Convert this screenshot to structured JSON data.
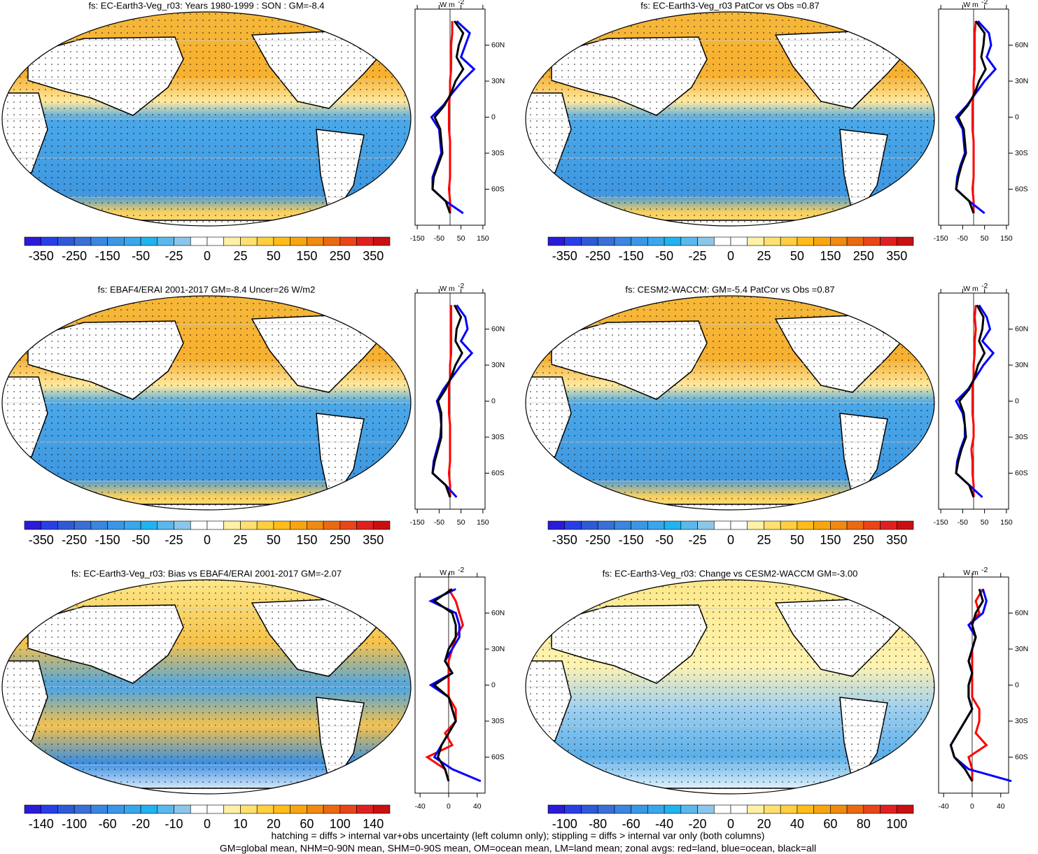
{
  "chart_data": [
    {
      "type": "map",
      "title": "fs: EC-Earth3-Veg_r03: Years 1980-1999 : SON : GM=-8.4",
      "colorbar_colors": [
        "#2a1bd8",
        "#2a3ee6",
        "#2e5ad6",
        "#3a6fd8",
        "#3a86e0",
        "#3a97e6",
        "#3aa6ec",
        "#1fb3ef",
        "#5ab8ec",
        "#8cc6ea",
        "#ffffff",
        "#ffffff",
        "#fff0a8",
        "#ffe070",
        "#ffcf40",
        "#ffbc1a",
        "#f7a510",
        "#f08a10",
        "#eb6a10",
        "#e84518",
        "#e02020",
        "#c81010"
      ],
      "colorbar_ticks": [
        -350,
        -250,
        -150,
        -50,
        -25,
        0,
        25,
        50,
        150,
        250,
        350
      ],
      "zonal": {
        "type": "line",
        "units": "W m",
        "units_sup": "-2",
        "lat": [
          80,
          70,
          60,
          50,
          40,
          30,
          20,
          10,
          0,
          -10,
          -20,
          -30,
          -40,
          -50,
          -60,
          -70,
          -80
        ],
        "xlim": [
          -160,
          160
        ],
        "xticks": [
          -150,
          -50,
          50,
          150
        ],
        "ylim": [
          -90,
          90
        ],
        "yticks": [
          {
            "value": 60,
            "label": "60N"
          },
          {
            "value": 30,
            "label": "30N"
          },
          {
            "value": 0,
            "label": "0"
          },
          {
            "value": -30,
            "label": "30S"
          },
          {
            "value": -60,
            "label": "60S"
          }
        ],
        "series": [
          {
            "color": "#ff0000",
            "values": [
              10,
              10,
              5,
              5,
              5,
              0,
              0,
              -5,
              -5,
              -5,
              0,
              0,
              0,
              0,
              -5,
              0,
              0
            ]
          },
          {
            "color": "#0000ff",
            "values": [
              30,
              90,
              70,
              50,
              110,
              55,
              10,
              -30,
              -85,
              -50,
              -45,
              -40,
              -60,
              -80,
              -80,
              -20,
              60
            ]
          },
          {
            "color": "#000000",
            "values": [
              20,
              60,
              40,
              30,
              60,
              25,
              5,
              -25,
              -70,
              -45,
              -40,
              -35,
              -55,
              -75,
              -80,
              -20,
              0
            ]
          }
        ]
      }
    },
    {
      "type": "map",
      "title": "fs: EC-Earth3-Veg_r03 PatCor vs Obs =0.87",
      "colorbar_colors": [
        "#2a1bd8",
        "#2a3ee6",
        "#2e5ad6",
        "#3a6fd8",
        "#3a86e0",
        "#3a97e6",
        "#3aa6ec",
        "#1fb3ef",
        "#5ab8ec",
        "#8cc6ea",
        "#ffffff",
        "#ffffff",
        "#fff0a8",
        "#ffe070",
        "#ffcf40",
        "#ffbc1a",
        "#f7a510",
        "#f08a10",
        "#eb6a10",
        "#e84518",
        "#e02020",
        "#c81010"
      ],
      "colorbar_ticks": [
        -350,
        -250,
        -150,
        -50,
        -25,
        0,
        25,
        50,
        150,
        250,
        350
      ],
      "zonal": {
        "type": "line",
        "units": "W m",
        "units_sup": "-2",
        "lat": [
          80,
          70,
          60,
          50,
          40,
          30,
          20,
          10,
          0,
          -10,
          -20,
          -30,
          -40,
          -50,
          -60,
          -70,
          -80
        ],
        "xlim": [
          -160,
          160
        ],
        "xticks": [
          -150,
          -50,
          50,
          150
        ],
        "ylim": [
          -90,
          90
        ],
        "yticks": [
          {
            "value": 60,
            "label": "60N"
          },
          {
            "value": 30,
            "label": "30N"
          },
          {
            "value": 0,
            "label": "0"
          },
          {
            "value": -30,
            "label": "30S"
          },
          {
            "value": -60,
            "label": "60S"
          }
        ],
        "series": [
          {
            "color": "#ff0000",
            "values": [
              10,
              5,
              5,
              5,
              5,
              0,
              0,
              -5,
              -5,
              -5,
              0,
              0,
              0,
              0,
              -5,
              0,
              0
            ]
          },
          {
            "color": "#0000ff",
            "values": [
              20,
              70,
              80,
              60,
              100,
              50,
              10,
              -30,
              -80,
              -50,
              -45,
              -40,
              -60,
              -75,
              -80,
              -20,
              50
            ]
          },
          {
            "color": "#000000",
            "values": [
              10,
              50,
              45,
              35,
              55,
              25,
              5,
              -25,
              -70,
              -45,
              -40,
              -35,
              -55,
              -70,
              -80,
              -20,
              0
            ]
          }
        ]
      }
    },
    {
      "type": "map",
      "title": "fs: EBAF4/ERAI 2001-2017 GM=-8.4 Uncer=26 W/m2",
      "colorbar_colors": [
        "#2a1bd8",
        "#2a3ee6",
        "#2e5ad6",
        "#3a6fd8",
        "#3a86e0",
        "#3a97e6",
        "#3aa6ec",
        "#1fb3ef",
        "#5ab8ec",
        "#8cc6ea",
        "#ffffff",
        "#ffffff",
        "#fff0a8",
        "#ffe070",
        "#ffcf40",
        "#ffbc1a",
        "#f7a510",
        "#f08a10",
        "#eb6a10",
        "#e84518",
        "#e02020",
        "#c81010"
      ],
      "colorbar_ticks": [
        -350,
        -250,
        -150,
        -50,
        -25,
        0,
        25,
        50,
        150,
        250,
        350
      ],
      "zonal": {
        "type": "line",
        "units": "W m",
        "units_sup": "-2",
        "lat": [
          80,
          70,
          60,
          50,
          40,
          30,
          20,
          10,
          0,
          -10,
          -20,
          -30,
          -40,
          -50,
          -60,
          -70,
          -80
        ],
        "xlim": [
          -160,
          160
        ],
        "xticks": [
          -150,
          -50,
          50,
          150
        ],
        "ylim": [
          -90,
          90
        ],
        "yticks": [
          {
            "value": 60,
            "label": "60N"
          },
          {
            "value": 30,
            "label": "30N"
          },
          {
            "value": 0,
            "label": "0"
          },
          {
            "value": -30,
            "label": "30S"
          },
          {
            "value": -60,
            "label": "60S"
          }
        ],
        "series": [
          {
            "color": "#ff0000",
            "values": [
              5,
              5,
              5,
              5,
              5,
              0,
              0,
              -5,
              -5,
              -5,
              0,
              0,
              0,
              0,
              -5,
              0,
              0
            ]
          },
          {
            "color": "#0000ff",
            "values": [
              30,
              70,
              80,
              50,
              100,
              50,
              10,
              -30,
              -60,
              -45,
              -40,
              -45,
              -60,
              -75,
              -80,
              -20,
              30
            ]
          },
          {
            "color": "#000000",
            "values": [
              20,
              50,
              30,
              25,
              55,
              25,
              5,
              -20,
              -55,
              -40,
              -40,
              -40,
              -55,
              -70,
              -80,
              -20,
              0
            ]
          }
        ]
      }
    },
    {
      "type": "map",
      "title": "fs: CESM2-WACCM: GM=-5.4 PatCor vs Obs =0.87",
      "colorbar_colors": [
        "#2a1bd8",
        "#2a3ee6",
        "#2e5ad6",
        "#3a6fd8",
        "#3a86e0",
        "#3a97e6",
        "#3aa6ec",
        "#1fb3ef",
        "#5ab8ec",
        "#8cc6ea",
        "#ffffff",
        "#ffffff",
        "#fff0a8",
        "#ffe070",
        "#ffcf40",
        "#ffbc1a",
        "#f7a510",
        "#f08a10",
        "#eb6a10",
        "#e84518",
        "#e02020",
        "#c81010"
      ],
      "colorbar_ticks": [
        -350,
        -250,
        -150,
        -50,
        -25,
        0,
        25,
        50,
        150,
        250,
        350
      ],
      "zonal": {
        "type": "line",
        "units": "W m",
        "units_sup": "-2",
        "lat": [
          80,
          70,
          60,
          50,
          40,
          30,
          20,
          10,
          0,
          -10,
          -20,
          -30,
          -40,
          -50,
          -60,
          -70,
          -80
        ],
        "xlim": [
          -160,
          160
        ],
        "xticks": [
          -150,
          -50,
          50,
          150
        ],
        "ylim": [
          -90,
          90
        ],
        "yticks": [
          {
            "value": 60,
            "label": "60N"
          },
          {
            "value": 30,
            "label": "30N"
          },
          {
            "value": 0,
            "label": "0"
          },
          {
            "value": -30,
            "label": "30S"
          },
          {
            "value": -60,
            "label": "60S"
          }
        ],
        "series": [
          {
            "color": "#ff0000",
            "values": [
              10,
              5,
              10,
              5,
              5,
              0,
              0,
              -5,
              -5,
              -5,
              0,
              0,
              -10,
              -5,
              -5,
              0,
              0
            ]
          },
          {
            "color": "#0000ff",
            "values": [
              25,
              60,
              75,
              40,
              90,
              45,
              10,
              -25,
              -80,
              -50,
              -40,
              -40,
              -60,
              -75,
              -80,
              -20,
              40
            ]
          },
          {
            "color": "#000000",
            "values": [
              15,
              45,
              40,
              25,
              50,
              20,
              5,
              -20,
              -65,
              -45,
              -40,
              -35,
              -55,
              -70,
              -80,
              -20,
              0
            ]
          }
        ]
      }
    },
    {
      "type": "map",
      "title": "fs: EC-Earth3-Veg_r03: Bias vs EBAF4/ERAI 2001-2017  GM=-2.07",
      "colorbar_colors": [
        "#2a1bd8",
        "#2a3ee6",
        "#2e5ad6",
        "#3a6fd8",
        "#3a86e0",
        "#3a97e6",
        "#3aa6ec",
        "#1fb3ef",
        "#5ab8ec",
        "#8cc6ea",
        "#ffffff",
        "#ffffff",
        "#fff0a8",
        "#ffe070",
        "#ffcf40",
        "#ffbc1a",
        "#f7a510",
        "#f08a10",
        "#eb6a10",
        "#e84518",
        "#e02020",
        "#c81010"
      ],
      "colorbar_ticks": [
        -140,
        -100,
        -60,
        -20,
        -10,
        0,
        10,
        20,
        60,
        100,
        140
      ],
      "zonal": {
        "type": "line",
        "units": "W m",
        "units_sup": "-2",
        "lat": [
          80,
          70,
          60,
          50,
          40,
          30,
          20,
          10,
          0,
          -10,
          -20,
          -30,
          -40,
          -50,
          -60,
          -70,
          -80
        ],
        "xlim": [
          -47,
          51
        ],
        "xticks": [
          -40,
          0,
          40
        ],
        "ylim": [
          -90,
          90
        ],
        "yticks": [
          {
            "value": 60,
            "label": "60N"
          },
          {
            "value": 30,
            "label": "30N"
          },
          {
            "value": 0,
            "label": "0"
          },
          {
            "value": -30,
            "label": "30S"
          },
          {
            "value": -60,
            "label": "60S"
          }
        ],
        "series": [
          {
            "color": "#ff0000",
            "values": [
              0,
              10,
              15,
              20,
              10,
              5,
              0,
              0,
              0,
              0,
              10,
              10,
              -5,
              5,
              -30,
              -5,
              0
            ]
          },
          {
            "color": "#0000ff",
            "values": [
              10,
              -25,
              10,
              15,
              15,
              5,
              -5,
              5,
              -25,
              0,
              5,
              10,
              0,
              -10,
              -20,
              5,
              45
            ]
          },
          {
            "color": "#000000",
            "values": [
              5,
              -20,
              5,
              10,
              10,
              0,
              -5,
              5,
              -20,
              0,
              5,
              10,
              0,
              -10,
              -15,
              -5,
              0
            ]
          }
        ]
      }
    },
    {
      "type": "map",
      "title": "fs: EC-Earth3-Veg_r03: Change vs CESM2-WACCM GM=-3.00",
      "colorbar_colors": [
        "#2a1bd8",
        "#2a3ee6",
        "#2e5ad6",
        "#3a6fd8",
        "#3a86e0",
        "#3a97e6",
        "#3aa6ec",
        "#1fb3ef",
        "#5ab8ec",
        "#8cc6ea",
        "#ffffff",
        "#ffffff",
        "#fff0a8",
        "#ffe070",
        "#ffcf40",
        "#ffbc1a",
        "#f7a510",
        "#f08a10",
        "#eb6a10",
        "#e84518",
        "#e02020",
        "#c81010"
      ],
      "colorbar_ticks": [
        -100,
        -80,
        -60,
        -40,
        -20,
        0,
        20,
        40,
        60,
        80,
        100
      ],
      "zonal": {
        "type": "line",
        "units": "W m",
        "units_sup": "-2",
        "lat": [
          80,
          70,
          60,
          50,
          40,
          30,
          20,
          10,
          0,
          -10,
          -20,
          -30,
          -40,
          -50,
          -60,
          -70,
          -80
        ],
        "xlim": [
          -47,
          51
        ],
        "xticks": [
          -40,
          0,
          40
        ],
        "ylim": [
          -90,
          90
        ],
        "yticks": [
          {
            "value": 60,
            "label": "60N"
          },
          {
            "value": 30,
            "label": "30N"
          },
          {
            "value": 0,
            "label": "0"
          },
          {
            "value": -30,
            "label": "30S"
          },
          {
            "value": -60,
            "label": "60S"
          }
        ],
        "series": [
          {
            "color": "#ff0000",
            "values": [
              15,
              5,
              10,
              -5,
              5,
              0,
              0,
              0,
              0,
              0,
              10,
              10,
              5,
              20,
              -5,
              0,
              0
            ]
          },
          {
            "color": "#0000ff",
            "values": [
              15,
              20,
              15,
              -5,
              5,
              0,
              -5,
              0,
              -5,
              -5,
              0,
              -10,
              -20,
              -30,
              -25,
              -5,
              55
            ]
          },
          {
            "color": "#000000",
            "values": [
              10,
              15,
              5,
              0,
              5,
              0,
              -5,
              0,
              -5,
              -5,
              0,
              -10,
              -20,
              -30,
              -25,
              -10,
              0
            ]
          }
        ]
      }
    }
  ],
  "notes": [
    "hatching = diffs > internal var+obs uncertainty (left column only); stippling = diffs > internal var only (both columns)",
    "GM=global mean, NHM=0-90N mean, SHM=0-90S mean, OM=ocean mean, LM=land mean; zonal avgs: red=land, blue=ocean, black=all"
  ]
}
